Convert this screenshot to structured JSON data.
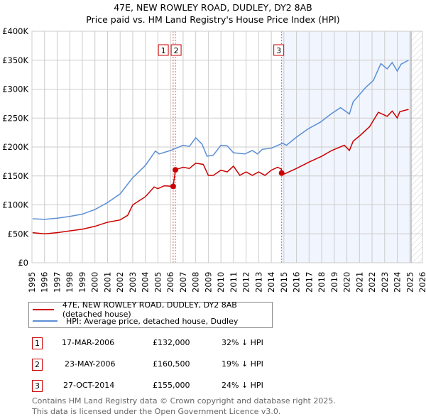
{
  "chart_data": {
    "type": "line",
    "title": "47E, NEW ROWLEY ROAD, DUDLEY, DY2 8AB",
    "subtitle": "Price paid vs. HM Land Registry's House Price Index (HPI)",
    "xlim": [
      1995,
      2026
    ],
    "ylim": [
      0,
      400000
    ],
    "y_ticks": [
      0,
      50000,
      100000,
      150000,
      200000,
      250000,
      300000,
      350000,
      400000
    ],
    "y_tick_labels": [
      "£0",
      "£50K",
      "£100K",
      "£150K",
      "£200K",
      "£250K",
      "£300K",
      "£350K",
      "£400K"
    ],
    "x_ticks": [
      1995,
      1996,
      1997,
      1998,
      1999,
      2000,
      2001,
      2002,
      2003,
      2004,
      2005,
      2006,
      2007,
      2008,
      2009,
      2010,
      2011,
      2012,
      2013,
      2014,
      2015,
      2016,
      2017,
      2018,
      2019,
      2020,
      2021,
      2022,
      2023,
      2024,
      2025,
      2026
    ],
    "x_tick_labels": [
      "1995",
      "1996",
      "1997",
      "1998",
      "1999",
      "2000",
      "2001",
      "2002",
      "2003",
      "2004",
      "2005",
      "2006",
      "2007",
      "2008",
      "2009",
      "2010",
      "2011",
      "2012",
      "2013",
      "2014",
      "2015",
      "2016",
      "2017",
      "2018",
      "2019",
      "2020",
      "2021",
      "2022",
      "2023",
      "2024",
      "2025",
      "2026"
    ],
    "grid": true,
    "shaded_region": [
      2014.82,
      2025.1
    ],
    "hatched_region": [
      2025.1,
      2026
    ],
    "series": [
      {
        "name": "47E, NEW ROWLEY ROAD, DUDLEY, DY2 8AB (detached house)",
        "color": "#cc0000",
        "x": [
          1995.05,
          1996,
          1997,
          1998,
          1999,
          2000,
          2001,
          2002,
          2002.6,
          2003,
          2004,
          2004.7,
          2005,
          2005.5,
          2006.21,
          2006.39,
          2007,
          2007.5,
          2008,
          2008.6,
          2009,
          2009.4,
          2010,
          2010.5,
          2011,
          2011.5,
          2012,
          2012.5,
          2013,
          2013.5,
          2014,
          2014.5,
          2014.8,
          2014.82,
          2015,
          2016,
          2017,
          2018,
          2018.8,
          2019.8,
          2020.2,
          2020.5,
          2021,
          2021.8,
          2022.5,
          2023.2,
          2023.6,
          2024,
          2024.2,
          2024.9
        ],
        "y": [
          52000,
          50000,
          52000,
          55000,
          58000,
          63000,
          70000,
          74000,
          82000,
          100000,
          114000,
          131000,
          128000,
          133000,
          132000,
          160500,
          165000,
          163000,
          172000,
          170000,
          151000,
          151000,
          160000,
          157000,
          167000,
          151000,
          157000,
          151000,
          157000,
          151000,
          160000,
          165000,
          162000,
          155000,
          153000,
          163000,
          174000,
          184000,
          194000,
          203000,
          194000,
          210000,
          219000,
          235000,
          260000,
          253000,
          262000,
          250000,
          261000,
          265000
        ]
      },
      {
        "name": "HPI: Average price, detached house, Dudley",
        "color": "#5b8fd6",
        "x": [
          1995.05,
          1996,
          1997,
          1998,
          1999,
          2000,
          2001,
          2002,
          2003,
          2004,
          2004.8,
          2005.1,
          2006,
          2007,
          2007.5,
          2008,
          2008.5,
          2008.9,
          2009.4,
          2010,
          2010.5,
          2011,
          2011.9,
          2012.5,
          2012.9,
          2013.3,
          2014,
          2014.9,
          2015.2,
          2016,
          2016.9,
          2017.9,
          2018.8,
          2019.5,
          2020.2,
          2020.5,
          2021.5,
          2022.1,
          2022.7,
          2023.2,
          2023.6,
          2024,
          2024.3,
          2024.9
        ],
        "y": [
          76000,
          75000,
          77000,
          80000,
          84000,
          92000,
          104000,
          119000,
          147000,
          168000,
          193000,
          188000,
          194000,
          203000,
          201000,
          216000,
          205000,
          184000,
          186000,
          203000,
          202000,
          190000,
          188000,
          194000,
          188000,
          196000,
          198000,
          206500,
          203000,
          217000,
          231000,
          243000,
          258000,
          268000,
          257000,
          278000,
          303000,
          315000,
          344000,
          335000,
          346000,
          331000,
          343000,
          350000
        ]
      }
    ],
    "sales": [
      {
        "label": "1",
        "x": 2006.21,
        "y": 132000
      },
      {
        "label": "2",
        "x": 2006.39,
        "y": 160500
      },
      {
        "label": "3",
        "x": 2014.82,
        "y": 155000
      }
    ]
  },
  "legend": {
    "property": "47E, NEW ROWLEY ROAD, DUDLEY, DY2 8AB (detached house)",
    "hpi": "HPI: Average price, detached house, Dudley"
  },
  "table": [
    {
      "num": "1",
      "date": "17-MAR-2006",
      "price": "£132,000",
      "hpi": "32% ↓ HPI"
    },
    {
      "num": "2",
      "date": "23-MAY-2006",
      "price": "£160,500",
      "hpi": "19% ↓ HPI"
    },
    {
      "num": "3",
      "date": "27-OCT-2014",
      "price": "£155,000",
      "hpi": "24% ↓ HPI"
    }
  ],
  "footer": {
    "line1": "Contains HM Land Registry data © Crown copyright and database right 2025.",
    "line2": "This data is licensed under the Open Government Licence v3.0."
  }
}
